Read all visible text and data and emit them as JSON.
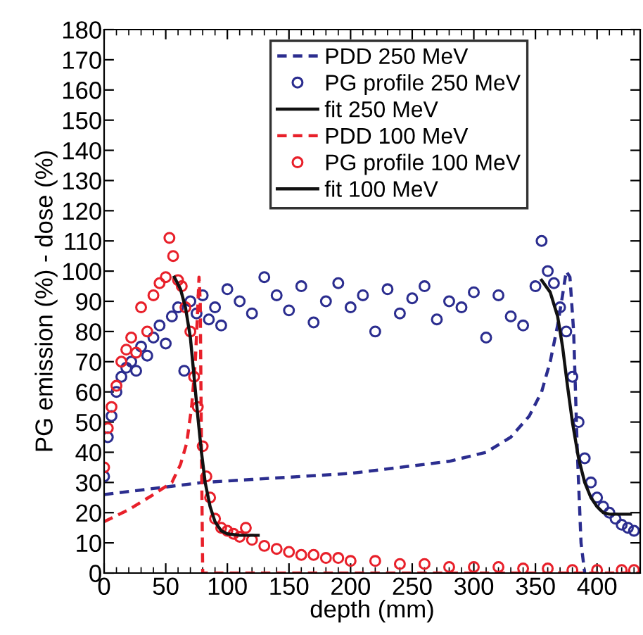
{
  "chart_data": {
    "type": "line",
    "xlabel": "depth (mm)",
    "ylabel": "PG emission (%) - dose (%)",
    "xlim": [
      0,
      435
    ],
    "ylim": [
      0,
      180
    ],
    "xticks": [
      0,
      50,
      100,
      150,
      200,
      250,
      300,
      350,
      400
    ],
    "yticks": [
      0,
      10,
      20,
      30,
      40,
      50,
      60,
      70,
      80,
      90,
      100,
      110,
      120,
      130,
      140,
      150,
      160,
      170,
      180
    ],
    "grid": false,
    "legend": "top",
    "series": [
      {
        "name": "PDD 250 MeV",
        "line_style": "dashed",
        "marker": "none",
        "color": "#2b2d8f",
        "x": [
          0,
          40,
          80,
          120,
          160,
          200,
          240,
          280,
          310,
          330,
          345,
          355,
          362,
          368,
          372,
          375,
          378,
          381,
          384,
          387,
          390
        ],
        "values": [
          26,
          28,
          30,
          31,
          32,
          33,
          35,
          37,
          40,
          45,
          52,
          60,
          70,
          82,
          92,
          100,
          98,
          80,
          40,
          10,
          0
        ]
      },
      {
        "name": "PG profile 250 MeV",
        "type": "scatter",
        "marker": "circle",
        "color": "#2b2d8f",
        "x": [
          0,
          3,
          6,
          10,
          14,
          18,
          22,
          26,
          30,
          35,
          40,
          45,
          50,
          55,
          60,
          65,
          70,
          75,
          80,
          85,
          90,
          95,
          100,
          110,
          120,
          130,
          140,
          150,
          160,
          170,
          180,
          190,
          200,
          210,
          220,
          230,
          240,
          250,
          260,
          270,
          280,
          290,
          300,
          310,
          320,
          330,
          340,
          350,
          355,
          360,
          365,
          370,
          375,
          380,
          385,
          390,
          395,
          400,
          405,
          410,
          415,
          420,
          425,
          430
        ],
        "values": [
          32,
          45,
          52,
          60,
          65,
          68,
          70,
          67,
          75,
          72,
          78,
          82,
          76,
          85,
          88,
          67,
          90,
          86,
          92,
          84,
          88,
          82,
          94,
          90,
          86,
          98,
          92,
          87,
          95,
          83,
          90,
          96,
          88,
          92,
          80,
          94,
          86,
          91,
          95,
          84,
          90,
          88,
          93,
          78,
          92,
          85,
          82,
          95,
          110,
          100,
          96,
          88,
          80,
          65,
          50,
          38,
          30,
          25,
          22,
          20,
          18,
          16,
          15,
          14
        ]
      },
      {
        "name": "fit 250 MeV",
        "line_style": "solid",
        "marker": "none",
        "color": "#111111",
        "x": [
          355,
          362,
          368,
          372,
          376,
          380,
          385,
          390,
          395,
          400,
          405,
          410,
          415,
          420,
          427
        ],
        "values": [
          97,
          93,
          85,
          75,
          62,
          50,
          38,
          30,
          25,
          22,
          20,
          19.5,
          19.5,
          19.5,
          19.5
        ]
      },
      {
        "name": "PDD 100 MeV",
        "line_style": "dashed",
        "marker": "none",
        "color": "#e8202a",
        "x": [
          0,
          20,
          40,
          55,
          62,
          67,
          71,
          74,
          76,
          77,
          78,
          79,
          80,
          435
        ],
        "values": [
          17,
          21,
          26,
          30,
          36,
          43,
          55,
          70,
          88,
          98,
          90,
          40,
          0,
          0
        ]
      },
      {
        "name": "PG profile 100 MeV",
        "type": "scatter",
        "marker": "circle",
        "color": "#e8202a",
        "x": [
          0,
          3,
          6,
          10,
          14,
          18,
          22,
          26,
          30,
          35,
          40,
          45,
          50,
          53,
          56,
          60,
          63,
          66,
          70,
          73,
          76,
          80,
          83,
          86,
          90,
          95,
          100,
          105,
          110,
          115,
          120,
          130,
          140,
          150,
          160,
          170,
          180,
          190,
          200,
          220,
          240,
          260,
          280,
          300,
          320,
          340,
          360,
          380,
          400,
          420,
          430
        ],
        "values": [
          35,
          48,
          55,
          62,
          70,
          74,
          78,
          73,
          88,
          80,
          92,
          96,
          98,
          111,
          105,
          97,
          95,
          88,
          80,
          65,
          55,
          42,
          32,
          25,
          18,
          15,
          14,
          13,
          12,
          15,
          11,
          9,
          8,
          7,
          6,
          6,
          5,
          5,
          4,
          4,
          3,
          3,
          2,
          2,
          2,
          1.5,
          1.5,
          1,
          1,
          1,
          1
        ]
      },
      {
        "name": "fit 100 MeV",
        "line_style": "solid",
        "marker": "none",
        "color": "#111111",
        "x": [
          57,
          62,
          66,
          70,
          73,
          76,
          79,
          82,
          86,
          90,
          95,
          100,
          110,
          125
        ],
        "values": [
          98,
          94,
          88,
          78,
          65,
          52,
          40,
          30,
          22,
          17,
          14,
          13,
          12.5,
          12.5
        ]
      }
    ]
  }
}
